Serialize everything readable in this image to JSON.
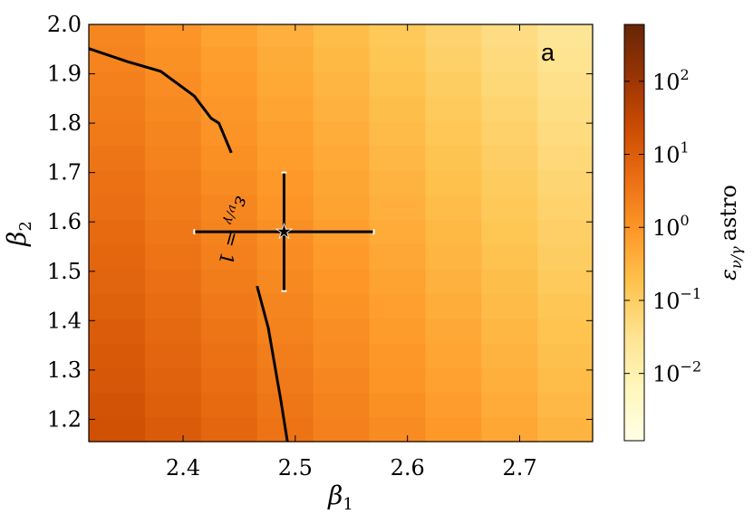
{
  "chart_data": {
    "type": "heatmap",
    "panel_label": "a",
    "xlabel_base": "β",
    "xlabel_sub": "1",
    "ylabel_base": "β",
    "ylabel_sub": "2",
    "colorbar_label": "astro",
    "colorbar_label_symbol": "ε",
    "colorbar_label_sub": "ν/γ",
    "colorbar_scale": "log",
    "colorbar_range": [
      0.0012,
      600
    ],
    "colorbar_ticks": [
      {
        "value": 100,
        "base": "10",
        "exp": "2"
      },
      {
        "value": 10,
        "base": "10",
        "exp": "1"
      },
      {
        "value": 1,
        "base": "10",
        "exp": "0"
      },
      {
        "value": 0.1,
        "base": "10",
        "exp": "−1"
      },
      {
        "value": 0.01,
        "base": "10",
        "exp": "−2"
      }
    ],
    "colormap": [
      "#ffffe5",
      "#fff7bc",
      "#fee391",
      "#fec44f",
      "#fe9929",
      "#ec7014",
      "#cc4c02",
      "#993404",
      "#662506"
    ],
    "xlim": [
      2.316,
      2.765
    ],
    "ylim": [
      1.155,
      2.0
    ],
    "x_ticks": [
      2.4,
      2.5,
      2.6,
      2.7
    ],
    "x_tick_labels": [
      "2.4",
      "2.5",
      "2.6",
      "2.7"
    ],
    "y_ticks": [
      1.2,
      1.3,
      1.4,
      1.5,
      1.6,
      1.7,
      1.8,
      1.9,
      2.0
    ],
    "y_tick_labels": [
      "1.2",
      "1.3",
      "1.4",
      "1.5",
      "1.6",
      "1.7",
      "1.8",
      "1.9",
      "2.0"
    ],
    "x_bins": [
      2.316,
      2.366,
      2.416,
      2.466,
      2.516,
      2.566,
      2.616,
      2.666,
      2.716,
      2.765
    ],
    "y_bins": [
      1.155,
      1.205,
      1.255,
      1.305,
      1.355,
      1.405,
      1.455,
      1.505,
      1.555,
      1.605,
      1.655,
      1.705,
      1.755,
      1.805,
      1.855,
      1.905,
      1.955,
      2.0
    ],
    "values_log10_model": "log10(ε) ≈ 1.25 − 4.5·(β1 − 2.34) − 1.3·(β2 − 1.2)",
    "contour": {
      "label_base": "ε",
      "label_sub": "ν/γ",
      "label_rest": " = 1",
      "upper_segment": [
        [
          2.316,
          1.951
        ],
        [
          2.35,
          1.925
        ],
        [
          2.38,
          1.905
        ],
        [
          2.41,
          1.855
        ],
        [
          2.425,
          1.81
        ],
        [
          2.432,
          1.8
        ],
        [
          2.443,
          1.74
        ]
      ],
      "lower_segment": [
        [
          2.466,
          1.47
        ],
        [
          2.476,
          1.385
        ],
        [
          2.487,
          1.24
        ],
        [
          2.493,
          1.155
        ]
      ]
    },
    "best_fit": {
      "x": 2.49,
      "y": 1.58,
      "x_err": [
        2.41,
        2.57
      ],
      "y_err": [
        1.46,
        1.7
      ],
      "marker": "★"
    }
  }
}
